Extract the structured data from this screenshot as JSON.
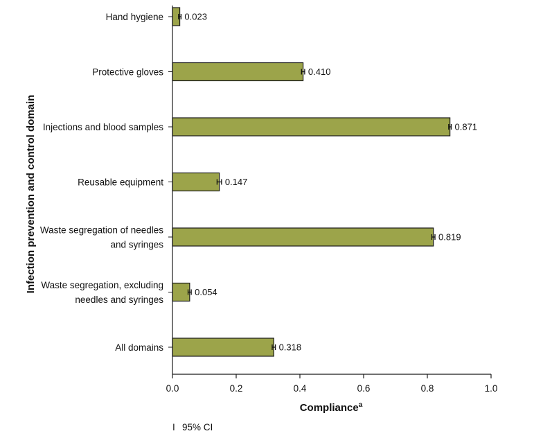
{
  "chart_data": {
    "type": "bar",
    "orientation": "horizontal",
    "categories": [
      [
        "Hand hygiene"
      ],
      [
        "Protective gloves"
      ],
      [
        "Injections and blood samples"
      ],
      [
        "Reusable equipment"
      ],
      [
        "Waste segregation of needles",
        "and syringes"
      ],
      [
        "Waste segregation, excluding",
        "needles and  syringes"
      ],
      [
        "All domains"
      ]
    ],
    "values": [
      0.023,
      0.41,
      0.871,
      0.147,
      0.819,
      0.054,
      0.318
    ],
    "value_labels": [
      "0.023",
      "0.410",
      "0.871",
      "0.147",
      "0.819",
      "0.054",
      "0.318"
    ],
    "ci_half_width": [
      0.004,
      0.005,
      0.004,
      0.007,
      0.005,
      0.005,
      0.005
    ],
    "xlabel": "Compliance",
    "xlabel_superscript": "a",
    "ylabel": "Infection prevention and control domain",
    "xlim": [
      0.0,
      1.0
    ],
    "xticks": [
      0.0,
      0.2,
      0.4,
      0.6,
      0.8,
      1.0
    ],
    "xtick_labels": [
      "0.0",
      "0.2",
      "0.4",
      "0.6",
      "0.8",
      "1.0"
    ],
    "grid": false,
    "legend": {
      "symbol": "I",
      "label": "95% CI",
      "placement": "bottom-left"
    },
    "colors": {
      "bar_fill": "#9ca44a",
      "bar_stroke": "#1a1a1a",
      "axis": "#1a1a1a"
    }
  }
}
